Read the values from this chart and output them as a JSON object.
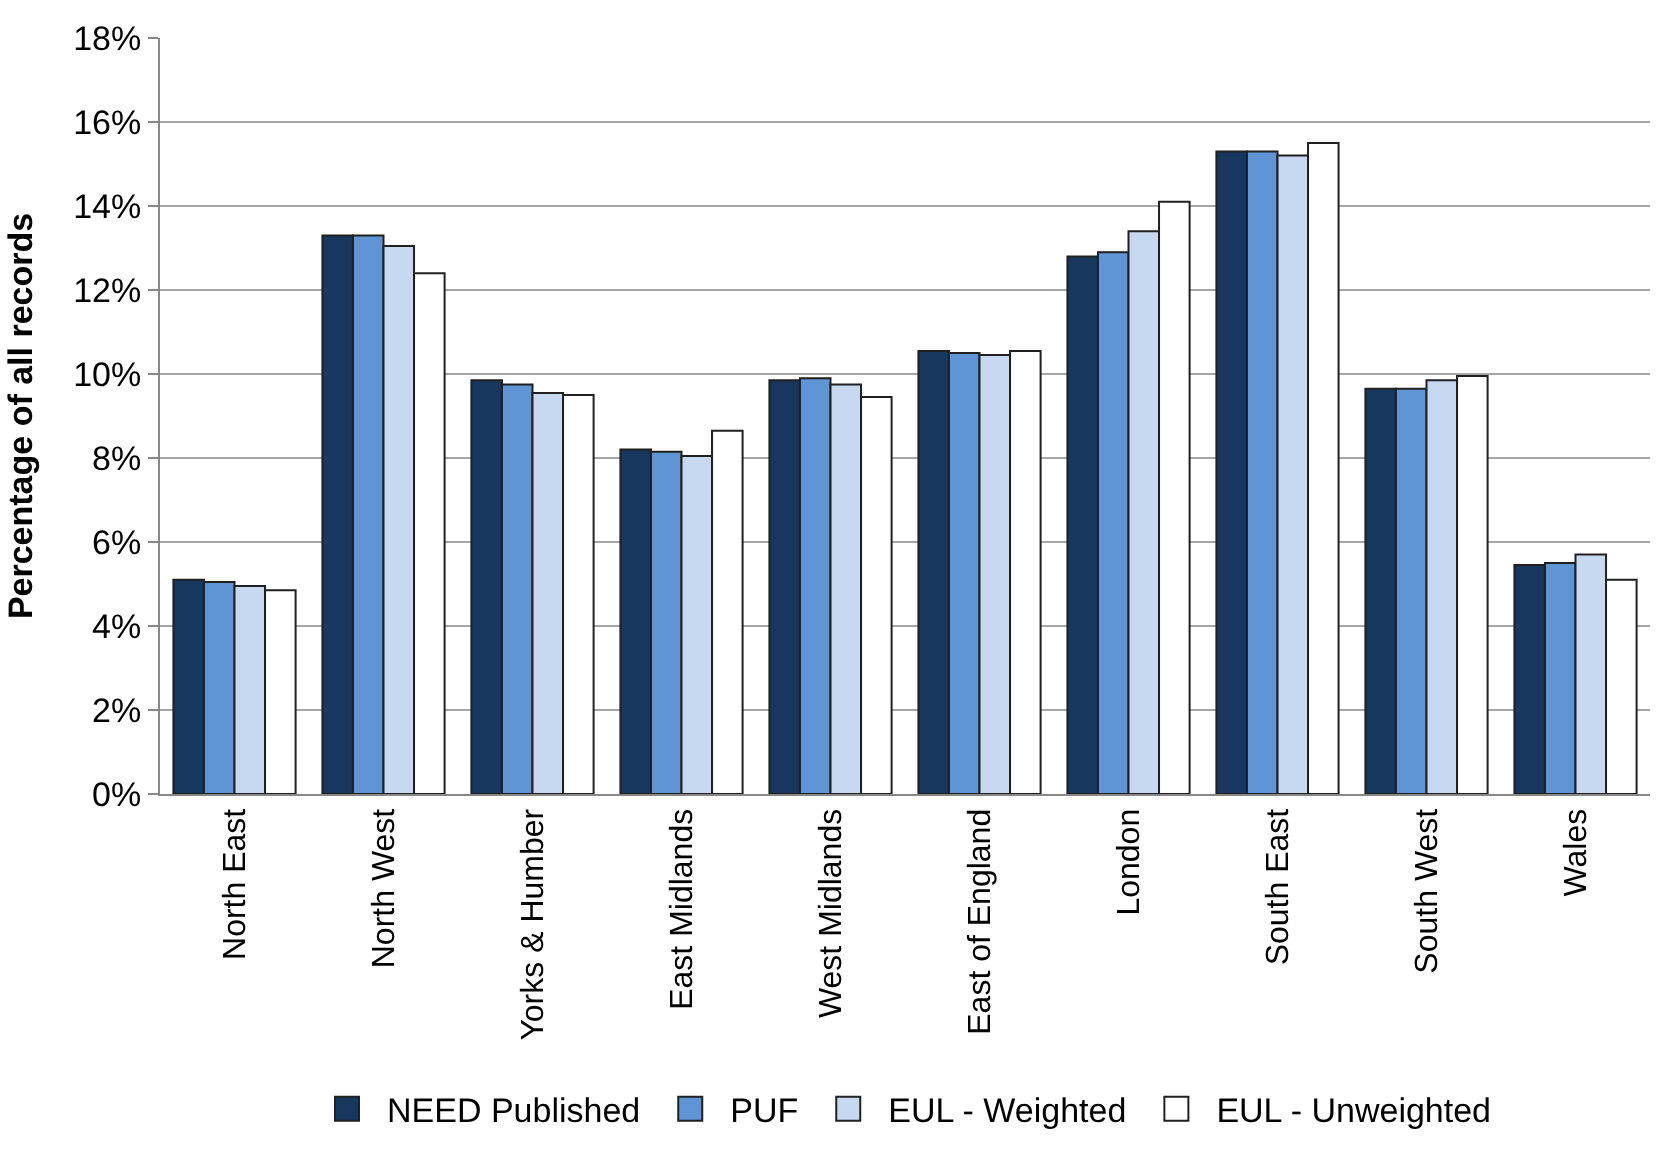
{
  "chart_data": {
    "type": "bar",
    "ylabel": "Percentage of all records",
    "categories": [
      "North East",
      "North West",
      "Yorks & Humber",
      "East Midlands",
      "West Midlands",
      "East of England",
      "London",
      "South East",
      "South West",
      "Wales"
    ],
    "series": [
      {
        "name": "NEED Published",
        "color": "#17375e",
        "values": [
          5.1,
          13.3,
          9.85,
          8.2,
          9.85,
          10.55,
          12.8,
          15.3,
          9.65,
          5.45
        ]
      },
      {
        "name": "PUF",
        "color": "#6095d5",
        "values": [
          5.05,
          13.3,
          9.75,
          8.15,
          9.9,
          10.5,
          12.9,
          15.3,
          9.65,
          5.5
        ]
      },
      {
        "name": "EUL - Weighted",
        "color": "#c6d9f1",
        "values": [
          4.95,
          13.05,
          9.55,
          8.05,
          9.75,
          10.45,
          13.4,
          15.2,
          9.85,
          5.7
        ]
      },
      {
        "name": "EUL - Unweighted",
        "color": "#ffffff",
        "values": [
          4.85,
          12.4,
          9.5,
          8.65,
          9.45,
          10.55,
          14.1,
          15.5,
          9.95,
          5.1
        ]
      }
    ],
    "ylim": [
      0,
      18
    ],
    "yticks": [
      {
        "value": 0,
        "label": "0%"
      },
      {
        "value": 2,
        "label": "2%"
      },
      {
        "value": 4,
        "label": "4%"
      },
      {
        "value": 6,
        "label": "6%"
      },
      {
        "value": 8,
        "label": "8%"
      },
      {
        "value": 10,
        "label": "10%"
      },
      {
        "value": 12,
        "label": "12%"
      },
      {
        "value": 14,
        "label": "14%"
      },
      {
        "value": 16,
        "label": "16%"
      },
      {
        "value": 18,
        "label": "18%"
      }
    ],
    "grid": "y",
    "legend": "bottom"
  }
}
